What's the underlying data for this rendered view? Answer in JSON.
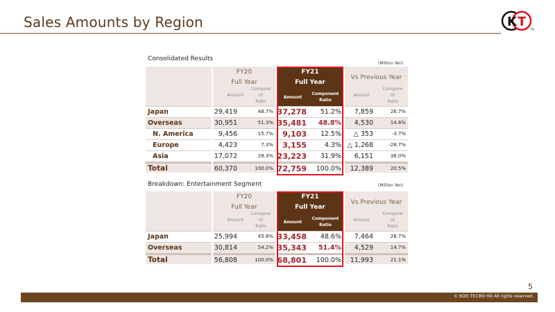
{
  "title": "Sales Amounts by Region",
  "logo_text": "KT",
  "page_number": "5",
  "copyright": "© KOEI TECMO HD All rights reserved.",
  "headers": {
    "fy20": "FY20",
    "fy21": "FY21",
    "full_year": "Full Year",
    "vs": "Vs Previous Year",
    "amount": "Amount",
    "comp_ratio_wrapped": [
      "Compone",
      "nt",
      "Ratio"
    ],
    "comp_ratio_bold": [
      "Component",
      "Ratio"
    ]
  },
  "tables": [
    {
      "title": "Consolidated Results",
      "unit": "(Million Yen)",
      "rows": [
        {
          "label": "Japan",
          "fy20_amt": "29,419",
          "fy20_ratio": "48.7%",
          "fy21_amt": "37,278",
          "fy21_ratio": "51.2%",
          "vs_amt": "7,859",
          "vs_ratio": "26.7%"
        },
        {
          "label": "Overseas",
          "fy20_amt": "30,951",
          "fy20_ratio": "51.3%",
          "fy21_amt": "35,481",
          "fy21_ratio": "48.8%",
          "vs_amt": "4,530",
          "vs_ratio": "14.6%"
        },
        {
          "label": "N. America",
          "fy20_amt": "9,456",
          "fy20_ratio": "15.7%",
          "fy21_amt": "9,103",
          "fy21_ratio": "12.5%",
          "vs_amt": "△ 353",
          "vs_ratio": "-3.7%"
        },
        {
          "label": "Europe",
          "fy20_amt": "4,423",
          "fy20_ratio": "7.3%",
          "fy21_amt": "3,155",
          "fy21_ratio": "4.3%",
          "vs_amt": "△ 1,268",
          "vs_ratio": "-28.7%"
        },
        {
          "label": "Asia",
          "fy20_amt": "17,072",
          "fy20_ratio": "28.3%",
          "fy21_amt": "23,223",
          "fy21_ratio": "31.9%",
          "vs_amt": "6,151",
          "vs_ratio": "36.0%"
        },
        {
          "label": "Total",
          "fy20_amt": "60,370",
          "fy20_ratio": "100.0%",
          "fy21_amt": "72,759",
          "fy21_ratio": "100.0%",
          "vs_amt": "12,389",
          "vs_ratio": "20.5%"
        }
      ]
    },
    {
      "title": "Breakdown: Entertainment Segment",
      "unit": "(Million Yen)",
      "rows": [
        {
          "label": "Japan",
          "fy20_amt": "25,994",
          "fy20_ratio": "45.8%",
          "fy21_amt": "33,458",
          "fy21_ratio": "48.6%",
          "vs_amt": "7,464",
          "vs_ratio": "28.7%"
        },
        {
          "label": "Overseas",
          "fy20_amt": "30,814",
          "fy20_ratio": "54.2%",
          "fy21_amt": "35,343",
          "fy21_ratio": "51.4%",
          "vs_amt": "4,529",
          "vs_ratio": "14.7%"
        },
        {
          "label": "Total",
          "fy20_amt": "56,808",
          "fy20_ratio": "100.0%",
          "fy21_amt": "68,801",
          "fy21_ratio": "100.0%",
          "vs_amt": "11,993",
          "vs_ratio": "21.1%"
        }
      ]
    }
  ]
}
